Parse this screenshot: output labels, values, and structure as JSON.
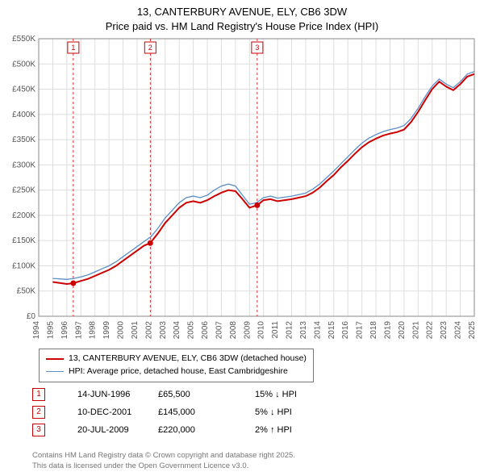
{
  "title_line1": "13, CANTERBURY AVENUE, ELY, CB6 3DW",
  "title_line2": "Price paid vs. HM Land Registry's House Price Index (HPI)",
  "chart": {
    "type": "line",
    "background_color": "#ffffff",
    "plot_border_color": "#888888",
    "grid_color": "#dddddd",
    "x": {
      "min": 1994,
      "max": 2025,
      "tick_step": 1
    },
    "y": {
      "min": 0,
      "max": 550000,
      "tick_step": 50000,
      "tick_prefix": "£",
      "tick_suffix": "K",
      "tick_divisor": 1000
    },
    "series": [
      {
        "name": "13, CANTERBURY AVENUE, ELY, CB6 3DW (detached house)",
        "color": "#cc0000",
        "width": 2,
        "points": [
          [
            1995.0,
            68000
          ],
          [
            1995.5,
            66000
          ],
          [
            1996.0,
            64000
          ],
          [
            1996.46,
            65500
          ],
          [
            1997.0,
            70000
          ],
          [
            1997.5,
            74000
          ],
          [
            1998.0,
            80000
          ],
          [
            1998.5,
            86000
          ],
          [
            1999.0,
            92000
          ],
          [
            1999.5,
            100000
          ],
          [
            2000.0,
            110000
          ],
          [
            2000.5,
            120000
          ],
          [
            2001.0,
            130000
          ],
          [
            2001.5,
            140000
          ],
          [
            2001.94,
            145000
          ],
          [
            2002.5,
            165000
          ],
          [
            2003.0,
            185000
          ],
          [
            2003.5,
            200000
          ],
          [
            2004.0,
            215000
          ],
          [
            2004.5,
            225000
          ],
          [
            2005.0,
            228000
          ],
          [
            2005.5,
            225000
          ],
          [
            2006.0,
            230000
          ],
          [
            2006.5,
            238000
          ],
          [
            2007.0,
            245000
          ],
          [
            2007.5,
            250000
          ],
          [
            2008.0,
            248000
          ],
          [
            2008.5,
            232000
          ],
          [
            2009.0,
            215000
          ],
          [
            2009.55,
            220000
          ],
          [
            2010.0,
            230000
          ],
          [
            2010.5,
            232000
          ],
          [
            2011.0,
            228000
          ],
          [
            2011.5,
            230000
          ],
          [
            2012.0,
            232000
          ],
          [
            2012.5,
            235000
          ],
          [
            2013.0,
            238000
          ],
          [
            2013.5,
            245000
          ],
          [
            2014.0,
            255000
          ],
          [
            2014.5,
            268000
          ],
          [
            2015.0,
            280000
          ],
          [
            2015.5,
            295000
          ],
          [
            2016.0,
            308000
          ],
          [
            2016.5,
            322000
          ],
          [
            2017.0,
            335000
          ],
          [
            2017.5,
            345000
          ],
          [
            2018.0,
            352000
          ],
          [
            2018.5,
            358000
          ],
          [
            2019.0,
            362000
          ],
          [
            2019.5,
            365000
          ],
          [
            2020.0,
            370000
          ],
          [
            2020.5,
            385000
          ],
          [
            2021.0,
            405000
          ],
          [
            2021.5,
            428000
          ],
          [
            2022.0,
            450000
          ],
          [
            2022.5,
            465000
          ],
          [
            2023.0,
            455000
          ],
          [
            2023.5,
            448000
          ],
          [
            2024.0,
            460000
          ],
          [
            2024.5,
            475000
          ],
          [
            2025.0,
            480000
          ]
        ]
      },
      {
        "name": "HPI: Average price, detached house, East Cambridgeshire",
        "color": "#5b8fc7",
        "width": 1.3,
        "points": [
          [
            1995.0,
            75000
          ],
          [
            1995.5,
            74000
          ],
          [
            1996.0,
            73000
          ],
          [
            1996.5,
            75000
          ],
          [
            1997.0,
            78000
          ],
          [
            1997.5,
            82000
          ],
          [
            1998.0,
            88000
          ],
          [
            1998.5,
            94000
          ],
          [
            1999.0,
            100000
          ],
          [
            1999.5,
            108000
          ],
          [
            2000.0,
            118000
          ],
          [
            2000.5,
            128000
          ],
          [
            2001.0,
            138000
          ],
          [
            2001.5,
            148000
          ],
          [
            2002.0,
            158000
          ],
          [
            2002.5,
            175000
          ],
          [
            2003.0,
            195000
          ],
          [
            2003.5,
            210000
          ],
          [
            2004.0,
            225000
          ],
          [
            2004.5,
            235000
          ],
          [
            2005.0,
            238000
          ],
          [
            2005.5,
            235000
          ],
          [
            2006.0,
            240000
          ],
          [
            2006.5,
            250000
          ],
          [
            2007.0,
            258000
          ],
          [
            2007.5,
            262000
          ],
          [
            2008.0,
            258000
          ],
          [
            2008.5,
            240000
          ],
          [
            2009.0,
            222000
          ],
          [
            2009.5,
            225000
          ],
          [
            2010.0,
            235000
          ],
          [
            2010.5,
            238000
          ],
          [
            2011.0,
            234000
          ],
          [
            2011.5,
            236000
          ],
          [
            2012.0,
            238000
          ],
          [
            2012.5,
            241000
          ],
          [
            2013.0,
            244000
          ],
          [
            2013.5,
            252000
          ],
          [
            2014.0,
            262000
          ],
          [
            2014.5,
            275000
          ],
          [
            2015.0,
            288000
          ],
          [
            2015.5,
            302000
          ],
          [
            2016.0,
            316000
          ],
          [
            2016.5,
            330000
          ],
          [
            2017.0,
            343000
          ],
          [
            2017.5,
            353000
          ],
          [
            2018.0,
            360000
          ],
          [
            2018.5,
            366000
          ],
          [
            2019.0,
            370000
          ],
          [
            2019.5,
            373000
          ],
          [
            2020.0,
            378000
          ],
          [
            2020.5,
            392000
          ],
          [
            2021.0,
            412000
          ],
          [
            2021.5,
            435000
          ],
          [
            2022.0,
            456000
          ],
          [
            2022.5,
            470000
          ],
          [
            2023.0,
            460000
          ],
          [
            2023.5,
            453000
          ],
          [
            2024.0,
            465000
          ],
          [
            2024.5,
            480000
          ],
          [
            2025.0,
            485000
          ]
        ]
      }
    ],
    "markers": [
      {
        "n": 1,
        "x": 1996.46,
        "y": 65500
      },
      {
        "n": 2,
        "x": 2001.94,
        "y": 145000
      },
      {
        "n": 3,
        "x": 2009.55,
        "y": 220000
      }
    ]
  },
  "legend": [
    {
      "label": "13, CANTERBURY AVENUE, ELY, CB6 3DW (detached house)",
      "color": "#cc0000",
      "width": 2
    },
    {
      "label": "HPI: Average price, detached house, East Cambridgeshire",
      "color": "#5b8fc7",
      "width": 1.3
    }
  ],
  "events": [
    {
      "n": "1",
      "date": "14-JUN-1996",
      "price": "£65,500",
      "delta": "15% ↓ HPI"
    },
    {
      "n": "2",
      "date": "10-DEC-2001",
      "price": "£145,000",
      "delta": "5% ↓ HPI"
    },
    {
      "n": "3",
      "date": "20-JUL-2009",
      "price": "£220,000",
      "delta": "2% ↑ HPI"
    }
  ],
  "attribution_line1": "Contains HM Land Registry data © Crown copyright and database right 2025.",
  "attribution_line2": "This data is licensed under the Open Government Licence v3.0."
}
